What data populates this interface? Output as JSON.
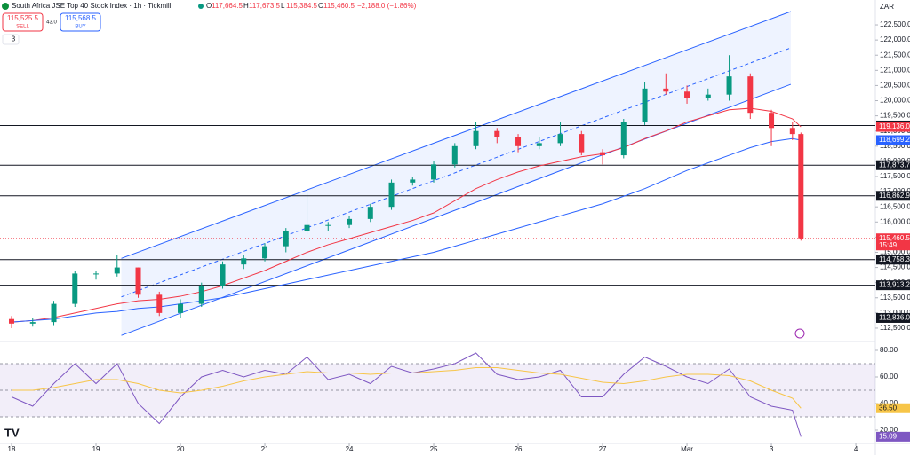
{
  "chart_data": {
    "type": "candlestick",
    "title": "South Africa JSE Top 40 Stock Index · 1h · Tickmill",
    "ohlc": [
      {
        "label": "O",
        "value": "117,664.5"
      },
      {
        "label": "H",
        "value": "117,673.5"
      },
      {
        "label": "L",
        "value": "115,384.5"
      },
      {
        "label": "C",
        "value": "115,460.5"
      }
    ],
    "change": "−2,188.0 (−1.86%)",
    "sell": {
      "price": "115,525.5",
      "label": "SELL"
    },
    "spread": "43.0",
    "buy": {
      "price": "115,568.5",
      "label": "BUY"
    },
    "indicator_count": "3",
    "currency": "ZAR",
    "up_color": "#089981",
    "down_color": "#f23645",
    "x": [
      0,
      0.25,
      0.5,
      0.75,
      1,
      1.25,
      1.5,
      1.75,
      2,
      2.25,
      2.5,
      2.75,
      3,
      3.25,
      3.5,
      3.75,
      4,
      4.25,
      4.5,
      4.75,
      5,
      5.25,
      5.5,
      5.75,
      6,
      6.25,
      6.5,
      6.75,
      7,
      7.25,
      7.5,
      7.75,
      8,
      8.25,
      8.5,
      8.75,
      9,
      9.25,
      9.35
    ],
    "open": [
      112800,
      112650,
      112700,
      113300,
      114300,
      114300,
      114500,
      113600,
      113000,
      113300,
      113900,
      114600,
      114800,
      115200,
      115700,
      115900,
      115900,
      116100,
      116500,
      117300,
      117400,
      117900,
      118500,
      119000,
      118800,
      118500,
      118600,
      118900,
      118300,
      118200,
      119300,
      120400,
      120300,
      120100,
      120200,
      120800,
      119600,
      119100,
      118900
    ],
    "high": [
      112900,
      112850,
      113400,
      114400,
      114400,
      114900,
      114500,
      113700,
      113450,
      114000,
      114700,
      114900,
      115300,
      115800,
      117000,
      116000,
      116200,
      116600,
      117400,
      117500,
      118000,
      118600,
      119300,
      119100,
      118900,
      118800,
      119300,
      119000,
      118400,
      119400,
      120600,
      120900,
      120500,
      120400,
      121500,
      120900,
      119700,
      119300,
      118950
    ],
    "low": [
      112500,
      112550,
      112600,
      113200,
      114100,
      114200,
      113500,
      112900,
      112850,
      113200,
      113800,
      114450,
      114700,
      115000,
      115600,
      115700,
      115800,
      116000,
      116400,
      117200,
      117300,
      117800,
      118400,
      118600,
      118300,
      118400,
      118500,
      118200,
      117900,
      118100,
      119200,
      120200,
      119900,
      120000,
      120000,
      119400,
      118500,
      118700,
      115384.5
    ],
    "close": [
      112650,
      112700,
      113300,
      114300,
      114300,
      114500,
      113600,
      113000,
      113300,
      113900,
      114600,
      114800,
      115200,
      115700,
      115900,
      115900,
      116100,
      116500,
      117300,
      117400,
      117900,
      118500,
      119000,
      118800,
      118500,
      118600,
      118900,
      118300,
      118200,
      119300,
      120400,
      120300,
      120100,
      120200,
      120800,
      119600,
      119100,
      118900,
      115460.5
    ],
    "moving_averages": [
      {
        "color": "#f23645",
        "values": [
          112700,
          112750,
          112850,
          113000,
          113150,
          113300,
          113400,
          113450,
          113550,
          113700,
          113900,
          114150,
          114400,
          114700,
          115000,
          115250,
          115450,
          115650,
          115850,
          116050,
          116300,
          116700,
          117100,
          117400,
          117650,
          117850,
          118000,
          118150,
          118250,
          118450,
          118750,
          119000,
          119300,
          119500,
          119700,
          119750,
          119650,
          119400,
          119136
        ]
      },
      {
        "color": "#2962ff",
        "values": [
          112700,
          112750,
          112800,
          112900,
          113000,
          113050,
          113150,
          113200,
          113300,
          113400,
          113500,
          113650,
          113800,
          113950,
          114100,
          114250,
          114400,
          114550,
          114700,
          114850,
          115000,
          115200,
          115400,
          115600,
          115800,
          116000,
          116200,
          116400,
          116600,
          116850,
          117100,
          117400,
          117700,
          117950,
          118200,
          118450,
          118650,
          118750,
          118699.2
        ]
      }
    ],
    "channel": {
      "x": [
        1.3,
        9.23
      ],
      "upper": [
        114800,
        122940
      ],
      "lower": [
        112260,
        120540
      ],
      "color": "#2962ff"
    },
    "levels": [
      {
        "value": 119182.8,
        "label": "119,182.8",
        "color": "#131722",
        "style": "solid"
      },
      {
        "value": 119136.0,
        "label": "119,136.0",
        "color": "#f23645",
        "style": "none"
      },
      {
        "value": 118699.2,
        "label": "118,699.2",
        "color": "#2962ff",
        "style": "none"
      },
      {
        "value": 117873.7,
        "label": "117,873.7",
        "color": "#131722",
        "style": "solid"
      },
      {
        "value": 116862.9,
        "label": "116,862.9",
        "color": "#131722",
        "style": "solid"
      },
      {
        "value": 115460.5,
        "label": "115,460.5",
        "time": "15:49",
        "color": "#f23645",
        "style": "dotted"
      },
      {
        "value": 114758.3,
        "label": "114,758.3",
        "color": "#131722",
        "style": "solid"
      },
      {
        "value": 113913.2,
        "label": "113,913.2",
        "color": "#131722",
        "style": "solid"
      },
      {
        "value": 112836.0,
        "label": "112,836.0",
        "color": "#131722",
        "style": "solid"
      }
    ],
    "xlim": [
      -0.137,
      10.231
    ],
    "ylim": [
      112060,
      123320
    ],
    "grid": false,
    "xticks": [
      {
        "value": 0,
        "label": "18"
      },
      {
        "value": 1,
        "label": "19"
      },
      {
        "value": 2,
        "label": "20"
      },
      {
        "value": 3,
        "label": "21"
      },
      {
        "value": 4,
        "label": "24"
      },
      {
        "value": 5,
        "label": "25"
      },
      {
        "value": 6,
        "label": "26"
      },
      {
        "value": 7,
        "label": "27"
      },
      {
        "value": 8,
        "label": "Mar"
      },
      {
        "value": 9,
        "label": "3"
      },
      {
        "value": 10,
        "label": "4"
      }
    ],
    "yticks": [
      {
        "value": 112500,
        "label": "112,500.0"
      },
      {
        "value": 113000,
        "label": "113,000.0"
      },
      {
        "value": 113500,
        "label": "113,500.0"
      },
      {
        "value": 114000,
        "label": "114,000.0"
      },
      {
        "value": 114500,
        "label": "114,500.0"
      },
      {
        "value": 115000,
        "label": "115,000.0"
      },
      {
        "value": 115500,
        "label": "115,500.0"
      },
      {
        "value": 116000,
        "label": "116,000.0"
      },
      {
        "value": 116500,
        "label": "116,500.0"
      },
      {
        "value": 117000,
        "label": "117,000.0"
      },
      {
        "value": 117500,
        "label": "117,500.0"
      },
      {
        "value": 118000,
        "label": "118,000.0"
      },
      {
        "value": 118500,
        "label": "118,500.0"
      },
      {
        "value": 119000,
        "label": "119,000.0"
      },
      {
        "value": 119500,
        "label": "119,500.0"
      },
      {
        "value": 120000,
        "label": "120,000.0"
      },
      {
        "value": 120500,
        "label": "120,500.0"
      },
      {
        "value": 121000,
        "label": "121,000.0"
      },
      {
        "value": 121500,
        "label": "121,500.0"
      },
      {
        "value": 122000,
        "label": "122,000.0"
      },
      {
        "value": 122500,
        "label": "122,500.0"
      }
    ],
    "rsi": {
      "ylim": [
        10,
        86.67
      ],
      "yticks": [
        {
          "value": 80,
          "label": "80.00"
        },
        {
          "value": 60,
          "label": "60.00"
        },
        {
          "value": 40,
          "label": "40.00"
        },
        {
          "value": 20,
          "label": "20.00"
        }
      ],
      "bands": [
        70,
        50,
        30
      ],
      "series": [
        {
          "color": "#7e57c2",
          "values": [
            45,
            38,
            55,
            70,
            55,
            70,
            40,
            25,
            45,
            60,
            65,
            60,
            65,
            62,
            75,
            58,
            62,
            55,
            68,
            63,
            66,
            70,
            78,
            62,
            58,
            60,
            65,
            45,
            45,
            62,
            75,
            68,
            60,
            55,
            66,
            45,
            38,
            35,
            15.09
          ],
          "last_label": "15.09"
        },
        {
          "color": "#f7c548",
          "values": [
            50,
            50,
            52,
            55,
            58,
            58,
            55,
            50,
            48,
            50,
            53,
            57,
            60,
            62,
            64,
            63,
            63,
            62,
            63,
            63,
            64,
            65,
            67,
            67,
            65,
            63,
            62,
            59,
            56,
            55,
            57,
            60,
            62,
            62,
            61,
            57,
            50,
            44,
            36.5
          ],
          "last_label": "36.50"
        }
      ]
    }
  }
}
